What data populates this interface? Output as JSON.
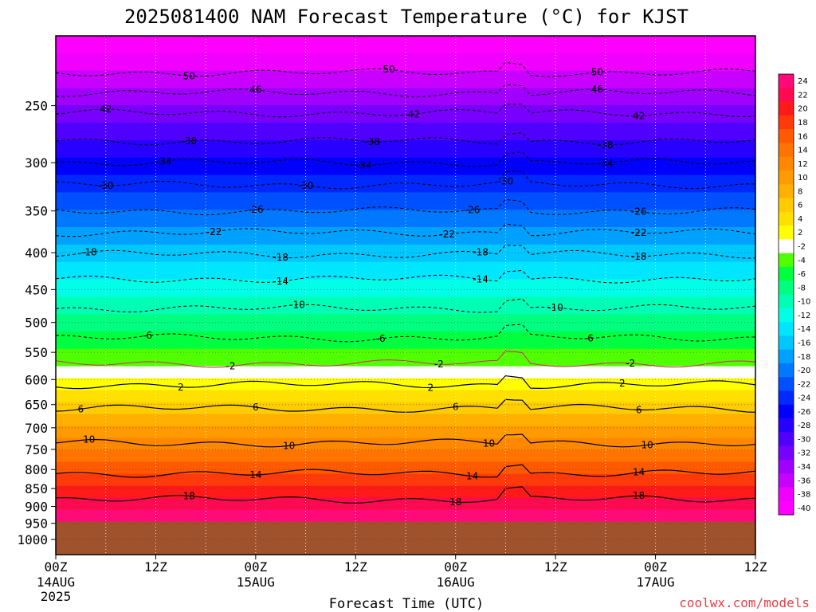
{
  "chart_data": {
    "type": "time-height contour (filled)",
    "title": "2025081400 NAM Forecast Temperature (°C) for KJST",
    "xlabel": "Forecast Time (UTC)",
    "ylabel": "",
    "credit": "coolwx.com/models",
    "x_ticks": [
      {
        "label": "00Z",
        "sub1": "14AUG",
        "sub2": "2025",
        "hour": 0
      },
      {
        "label": "12Z",
        "sub1": "",
        "sub2": "",
        "hour": 12
      },
      {
        "label": "00Z",
        "sub1": "15AUG",
        "sub2": "",
        "hour": 24
      },
      {
        "label": "12Z",
        "sub1": "",
        "sub2": "",
        "hour": 36
      },
      {
        "label": "00Z",
        "sub1": "16AUG",
        "sub2": "",
        "hour": 48
      },
      {
        "label": "12Z",
        "sub1": "",
        "sub2": "",
        "hour": 60
      },
      {
        "label": "00Z",
        "sub1": "17AUG",
        "sub2": "",
        "hour": 72
      },
      {
        "label": "12Z",
        "sub1": "",
        "sub2": "",
        "hour": 84
      }
    ],
    "x_range_hours": [
      0,
      84
    ],
    "y_axis": "pressure (hPa), log scale, inverted",
    "y_range_hpa": [
      200,
      1050
    ],
    "y_ticks": [
      "250",
      "300",
      "350",
      "400",
      "450",
      "500",
      "550",
      "600",
      "650",
      "700",
      "750",
      "800",
      "850",
      "900",
      "950",
      "1000"
    ],
    "ground_level_hpa": 945,
    "colorbar_levels": [
      "24",
      "22",
      "20",
      "18",
      "16",
      "14",
      "12",
      "10",
      "8",
      "6",
      "4",
      "2",
      "-2",
      "-4",
      "-6",
      "-8",
      "-10",
      "-12",
      "-14",
      "-16",
      "-18",
      "-20",
      "-22",
      "-24",
      "-26",
      "-28",
      "-30",
      "-32",
      "-34",
      "-36",
      "-38",
      "-40"
    ],
    "colorbar_colors": [
      "#ff0a78",
      "#ff0a50",
      "#ff1a1a",
      "#ff3a0a",
      "#ff5a00",
      "#ff7300",
      "#ff8800",
      "#ff9a00",
      "#ffb000",
      "#ffcc00",
      "#ffe000",
      "#ffff00",
      "#ffffff",
      "#50ff00",
      "#00ff40",
      "#00ff80",
      "#00ffb4",
      "#00ffe6",
      "#00e6ff",
      "#00c8ff",
      "#00a0ff",
      "#0078ff",
      "#0050ff",
      "#0028ff",
      "#0000ff",
      "#2800ff",
      "#5000ff",
      "#7800ff",
      "#a000ff",
      "#c800ff",
      "#f000ff",
      "#ff00ff"
    ],
    "isotherms": [
      {
        "temp": 50,
        "p_hpa": 225,
        "labels_at_hours": [
          16,
          40,
          65
        ]
      },
      {
        "temp": 46,
        "p_hpa": 240,
        "labels_at_hours": [
          24,
          65
        ]
      },
      {
        "temp": 42,
        "p_hpa": 256,
        "labels_at_hours": [
          6,
          43,
          70
        ]
      },
      {
        "temp": 38,
        "p_hpa": 280,
        "labels_at_hours": [
          16,
          38,
          66
        ]
      },
      {
        "temp": 34,
        "p_hpa": 300,
        "labels_at_hours": [
          13,
          37,
          66
        ]
      },
      {
        "temp": 30,
        "p_hpa": 322,
        "labels_at_hours": [
          6,
          30,
          54
        ]
      },
      {
        "temp": 26,
        "p_hpa": 350,
        "labels_at_hours": [
          24,
          50,
          70
        ]
      },
      {
        "temp": 22,
        "p_hpa": 375,
        "labels_at_hours": [
          19,
          47,
          70
        ]
      },
      {
        "temp": 18,
        "p_hpa": 402,
        "labels_at_hours": [
          4,
          27,
          51,
          70
        ]
      },
      {
        "temp": 14,
        "p_hpa": 435,
        "labels_at_hours": [
          27,
          51
        ]
      },
      {
        "temp": 10,
        "p_hpa": 478,
        "labels_at_hours": [
          29,
          60
        ]
      },
      {
        "temp": 6,
        "p_hpa": 525,
        "labels_at_hours": [
          11,
          39,
          64
        ]
      },
      {
        "temp": 2,
        "p_hpa": 570,
        "labels_at_hours": [
          21,
          46,
          69
        ]
      },
      {
        "temp": 2,
        "p_hpa": 610,
        "labels_at_hours": [
          15,
          45,
          68
        ]
      },
      {
        "temp": 6,
        "p_hpa": 658,
        "labels_at_hours": [
          3,
          24,
          48,
          70
        ]
      },
      {
        "temp": 10,
        "p_hpa": 735,
        "labels_at_hours": [
          4,
          28,
          52,
          71
        ]
      },
      {
        "temp": 14,
        "p_hpa": 810,
        "labels_at_hours": [
          24,
          50,
          70
        ]
      },
      {
        "temp": 18,
        "p_hpa": 880,
        "labels_at_hours": [
          16,
          48,
          70
        ]
      }
    ],
    "isotherm_labels": {
      "50": "50",
      "46": "46",
      "42": "42",
      "38": "-38",
      "34": "-34",
      "30": "-30",
      "26": "-26",
      "22": "-22",
      "18up": "-18",
      "14up": "-14",
      "10up": "-10",
      "6up": "-6",
      "2up": "-2",
      "2": "2",
      "6": "6",
      "10": "10",
      "14": "14",
      "18": "18"
    }
  }
}
